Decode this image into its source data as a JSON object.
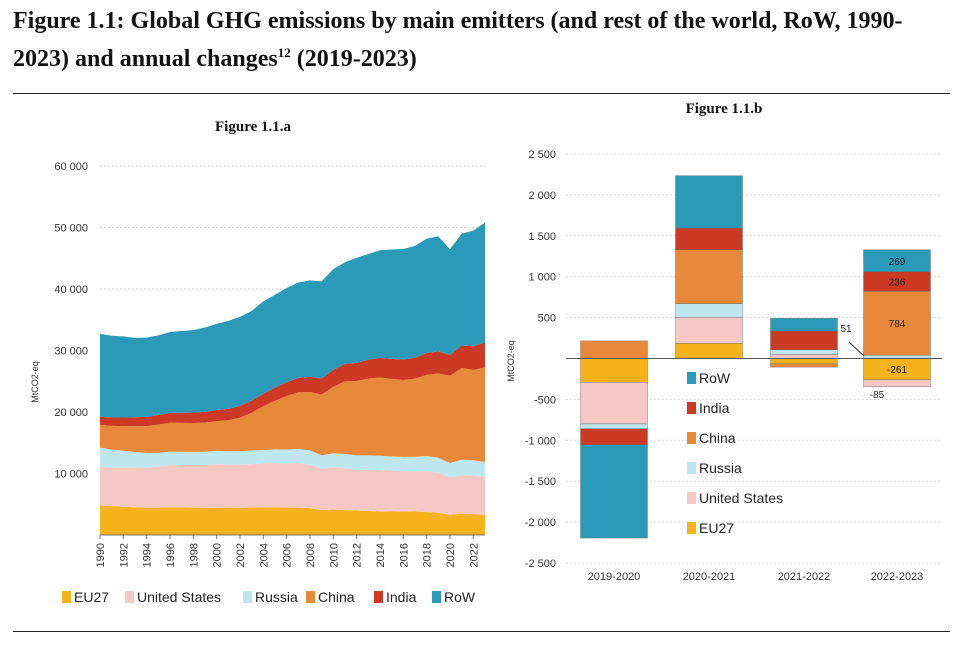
{
  "title_main": "Figure 1.1: Global GHG emissions by main emitters (and rest of the world, RoW, 1990-2023) and annual changes",
  "title_sup": "12",
  "title_end": " (2019-2023)",
  "chart_data": [
    {
      "type": "area",
      "stacked": true,
      "title": "Figure 1.1.a",
      "ylabel": "MtCO2-eq",
      "ylim": [
        0,
        60000
      ],
      "yticks": [
        10000,
        20000,
        30000,
        40000,
        50000,
        60000
      ],
      "ytick_labels": [
        "10 000",
        "20 000",
        "30 000",
        "40 000",
        "50 000",
        "60 000"
      ],
      "xtick_labels": [
        "1990",
        "1992",
        "1994",
        "1996",
        "1998",
        "2000",
        "2002",
        "2004",
        "2006",
        "2008",
        "2010",
        "2012",
        "2014",
        "2016",
        "2018",
        "2020",
        "2022"
      ],
      "x": [
        1990,
        1991,
        1992,
        1993,
        1994,
        1995,
        1996,
        1997,
        1998,
        1999,
        2000,
        2001,
        2002,
        2003,
        2004,
        2005,
        2006,
        2007,
        2008,
        2009,
        2010,
        2011,
        2012,
        2013,
        2014,
        2015,
        2016,
        2017,
        2018,
        2019,
        2020,
        2021,
        2022,
        2023
      ],
      "legend_position": "bottom",
      "grid": true,
      "series": [
        {
          "name": "EU27",
          "color": "#f5b21a",
          "values": [
            4800,
            4700,
            4600,
            4500,
            4450,
            4450,
            4500,
            4480,
            4460,
            4430,
            4420,
            4460,
            4440,
            4480,
            4490,
            4470,
            4460,
            4450,
            4360,
            4050,
            4150,
            4050,
            3990,
            3900,
            3800,
            3830,
            3810,
            3820,
            3740,
            3610,
            3300,
            3460,
            3400,
            3260
          ]
        },
        {
          "name": "United States",
          "color": "#f5c8c3",
          "values": [
            6300,
            6250,
            6350,
            6450,
            6550,
            6650,
            6800,
            6900,
            6950,
            7000,
            7100,
            7000,
            7050,
            7050,
            7150,
            7200,
            7150,
            7250,
            7050,
            6700,
            6850,
            6800,
            6600,
            6700,
            6750,
            6650,
            6550,
            6500,
            6650,
            6500,
            6050,
            6300,
            6300,
            6150
          ]
        },
        {
          "name": "Russia",
          "color": "#bde6ef",
          "values": [
            3100,
            2950,
            2750,
            2550,
            2350,
            2250,
            2250,
            2150,
            2100,
            2100,
            2150,
            2150,
            2150,
            2200,
            2200,
            2250,
            2300,
            2300,
            2350,
            2200,
            2300,
            2350,
            2350,
            2350,
            2350,
            2300,
            2350,
            2400,
            2450,
            2450,
            2350,
            2500,
            2450,
            2450
          ]
        },
        {
          "name": "China",
          "color": "#e8883a",
          "values": [
            3700,
            3850,
            4000,
            4200,
            4350,
            4600,
            4700,
            4700,
            4700,
            4750,
            4850,
            5050,
            5450,
            6150,
            7100,
            7900,
            8700,
            9200,
            9500,
            9900,
            10800,
            11800,
            12100,
            12500,
            12700,
            12600,
            12500,
            12700,
            13200,
            13700,
            14200,
            14900,
            14700,
            15400
          ]
        },
        {
          "name": "India",
          "color": "#cc3a26",
          "values": [
            1300,
            1350,
            1400,
            1450,
            1500,
            1550,
            1600,
            1650,
            1700,
            1750,
            1800,
            1850,
            1900,
            1950,
            2050,
            2150,
            2250,
            2350,
            2450,
            2600,
            2750,
            2850,
            2950,
            3050,
            3200,
            3250,
            3300,
            3400,
            3550,
            3600,
            3350,
            3650,
            3850,
            4050
          ]
        },
        {
          "name": "RoW",
          "color": "#2a9ab8",
          "values": [
            13500,
            13300,
            13200,
            12900,
            12900,
            12950,
            13150,
            13300,
            13400,
            13700,
            14000,
            14300,
            14500,
            14600,
            15000,
            15100,
            15300,
            15500,
            15700,
            15800,
            16400,
            16500,
            17100,
            17200,
            17500,
            17800,
            18000,
            18200,
            18600,
            18700,
            17200,
            18200,
            18800,
            19500
          ]
        }
      ]
    },
    {
      "type": "bar",
      "stacked": true,
      "title": "Figure 1.1.b",
      "ylabel": "MtCO2-eq",
      "ylim": [
        -2500,
        2500
      ],
      "yticks": [
        -2500,
        -2000,
        -1500,
        -1000,
        -500,
        0,
        500,
        1000,
        1500,
        2000,
        2500
      ],
      "ytick_labels": [
        "-2 500",
        "-2 000",
        "-1 500",
        "-1 000",
        "-500",
        "",
        "500",
        "1 000",
        "1 500",
        "2 000",
        "2 500"
      ],
      "categories": [
        "2019-2020",
        "2020-2021",
        "2021-2022",
        "2022-2023"
      ],
      "grid": true,
      "legend_position": "inside-center",
      "series": [
        {
          "name": "EU27",
          "color": "#f5b21a",
          "values": [
            -290,
            185,
            -65,
            -261
          ]
        },
        {
          "name": "United States",
          "color": "#f5c8c3",
          "values": [
            -510,
            320,
            51,
            -85
          ]
        },
        {
          "name": "Russia",
          "color": "#bde6ef",
          "values": [
            -60,
            165,
            55,
            40
          ]
        },
        {
          "name": "China",
          "color": "#e8883a",
          "values": [
            215,
            660,
            -40,
            784
          ]
        },
        {
          "name": "India",
          "color": "#cc3a26",
          "values": [
            -195,
            265,
            230,
            236
          ]
        },
        {
          "name": "RoW",
          "color": "#2a9ab8",
          "values": [
            -1140,
            640,
            155,
            269
          ]
        }
      ],
      "data_labels": [
        {
          "category": "2022-2023",
          "series": "RoW",
          "text": "269"
        },
        {
          "category": "2022-2023",
          "series": "India",
          "text": "236"
        },
        {
          "category": "2022-2023",
          "series": "China",
          "text": "784"
        },
        {
          "category": "2022-2023",
          "series": "EU27",
          "text": "-261"
        },
        {
          "category": "2022-2023",
          "series": "United States",
          "text": "-85"
        },
        {
          "category": "2021-2022",
          "series": "United States",
          "text": "51"
        }
      ]
    }
  ]
}
